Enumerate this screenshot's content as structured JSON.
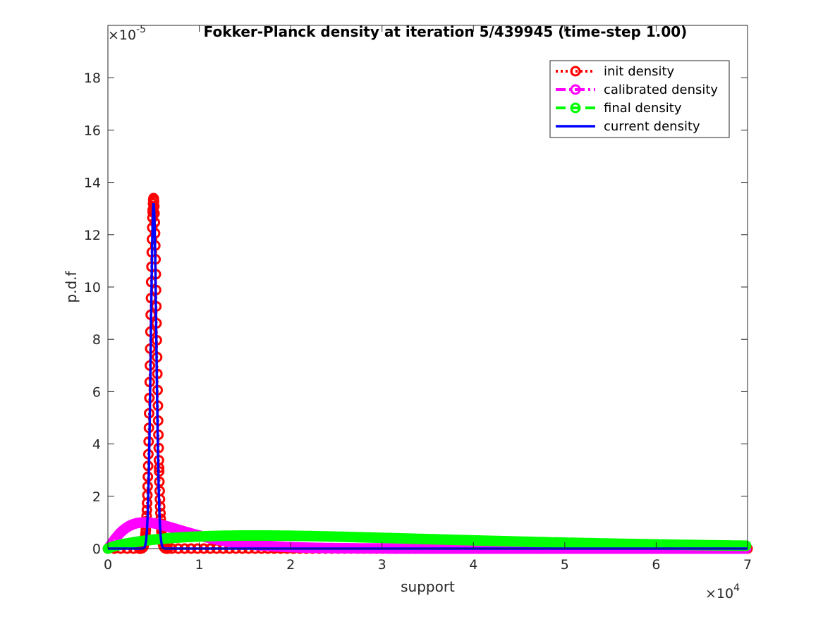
{
  "chart_data": {
    "type": "line",
    "title": "Fokker-Planck density at iteration 5/439945 (time-step   1.00)",
    "xlabel": "support",
    "ylabel": "p.d.f",
    "xlim": [
      0,
      70000
    ],
    "ylim": [
      0,
      2e-05
    ],
    "x_multiplier_label": "×10",
    "x_multiplier_exp": "4",
    "y_multiplier_label": "×10",
    "y_multiplier_exp": "-5",
    "x_ticks": [
      0,
      10000,
      20000,
      30000,
      40000,
      50000,
      60000,
      70000
    ],
    "x_tick_labels": [
      "0",
      "1",
      "2",
      "3",
      "4",
      "5",
      "6",
      "7"
    ],
    "y_ticks": [
      0,
      2e-06,
      4e-06,
      6e-06,
      8e-06,
      1e-05,
      1.2e-05,
      1.4e-05,
      1.6e-05,
      1.8e-05
    ],
    "y_tick_labels": [
      "0",
      "2",
      "4",
      "6",
      "8",
      "10",
      "12",
      "14",
      "16",
      "18"
    ],
    "grid": false,
    "legend_position": "top-right",
    "series": [
      {
        "name": "init density",
        "color": "#ff0000",
        "style": "dotted",
        "marker": "circle",
        "shape": "gaussian",
        "peak_x": 5000,
        "peak_y": 1.34e-05,
        "sigma": 350
      },
      {
        "name": "calibrated density",
        "color": "#ff00ff",
        "style": "dashdot",
        "marker": "circle",
        "shape": "gamma",
        "mode_x": 4000,
        "peak_y": 1e-06,
        "k": 2.2
      },
      {
        "name": "final density",
        "color": "#00ff00",
        "style": "dashed",
        "marker": "circle",
        "shape": "gamma",
        "mode_x": 16000,
        "peak_y": 5e-07,
        "k": 1.8
      },
      {
        "name": "current density",
        "color": "#0000ff",
        "style": "solid",
        "marker": "none",
        "shape": "gaussian",
        "peak_x": 5000,
        "peak_y": 1.32e-05,
        "sigma": 300
      }
    ]
  }
}
